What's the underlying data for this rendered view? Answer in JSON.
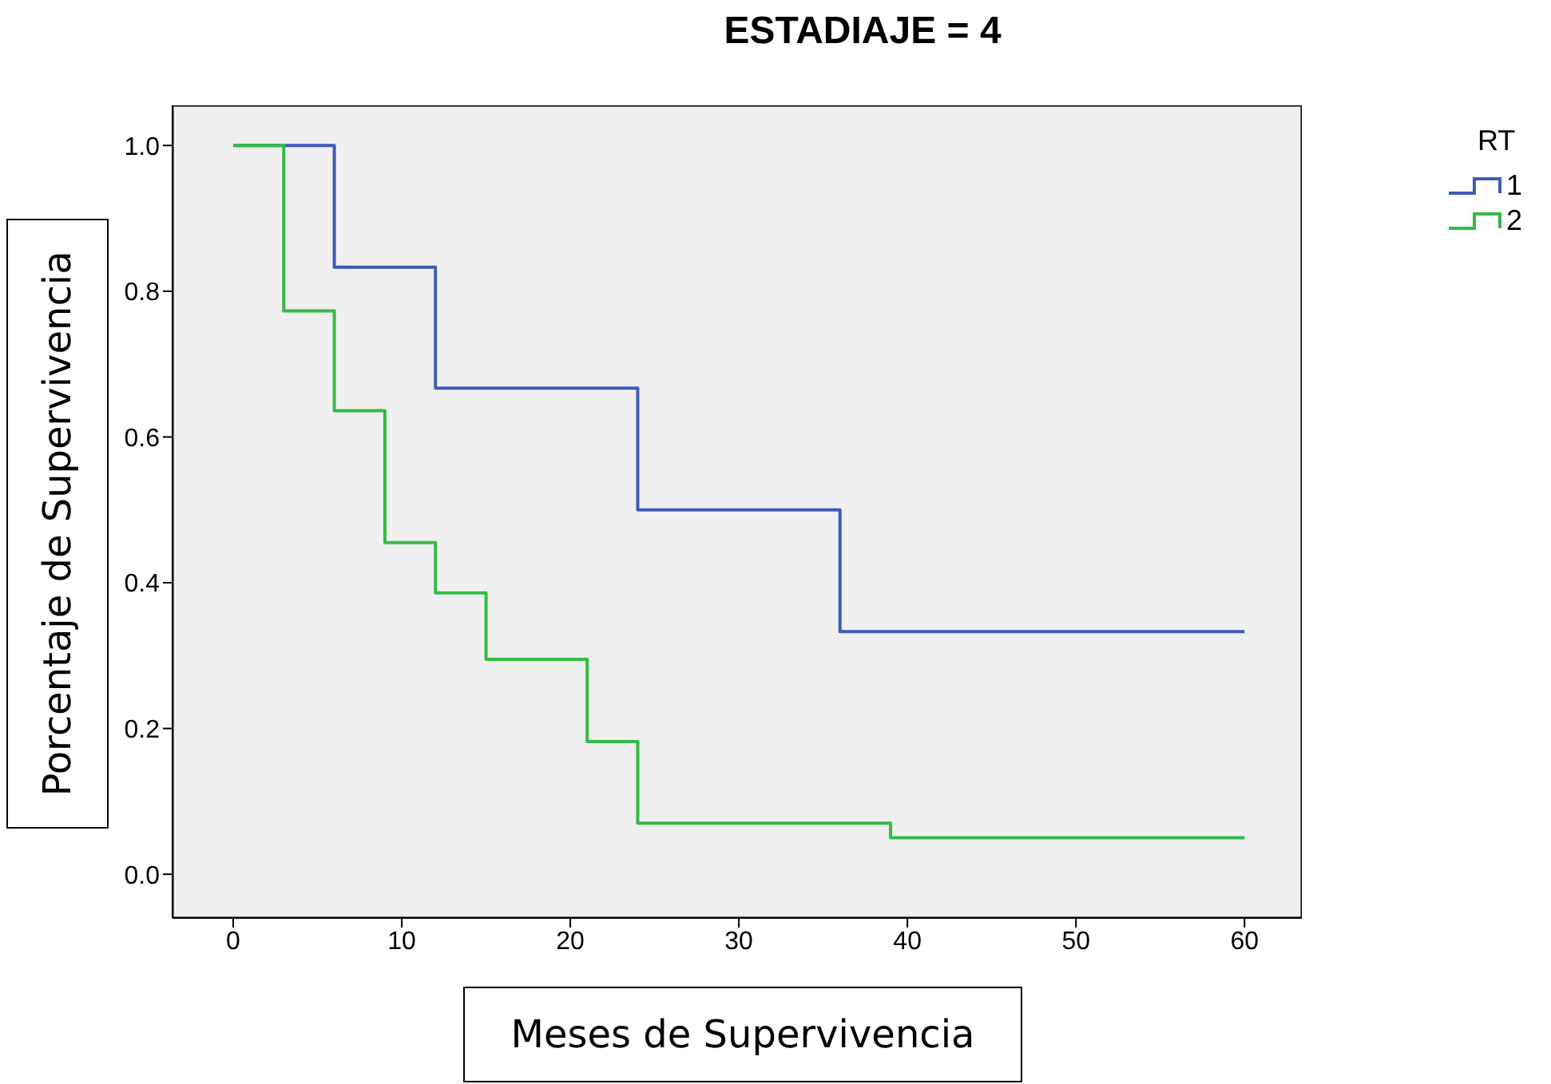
{
  "chart_data": {
    "type": "step",
    "title": "ESTADIAJE = 4",
    "xlabel": "Meses de Supervivencia",
    "ylabel": "Porcentaje de Supervivencia",
    "legend_title": "RT",
    "series": [
      {
        "name": "1",
        "color": "#3f5bb5",
        "x": [
          0,
          6,
          12,
          24,
          36,
          60
        ],
        "values": [
          1.0,
          0.833,
          0.667,
          0.5,
          0.333,
          0.333
        ]
      },
      {
        "name": "2",
        "color": "#33bb45",
        "x": [
          0,
          3,
          6,
          9,
          12,
          15,
          21,
          24,
          39,
          60
        ],
        "values": [
          1.0,
          0.773,
          0.636,
          0.455,
          0.386,
          0.295,
          0.182,
          0.07,
          0.05,
          0.05
        ]
      }
    ],
    "xlim": [
      -3.6,
      63.4
    ],
    "xticks": [
      0,
      10,
      20,
      30,
      40,
      50,
      60
    ],
    "ylim": [
      -0.06,
      1.055
    ],
    "yticks": [
      {
        "value": 0,
        "label": "0.0"
      },
      0.2,
      0.4,
      0.6,
      0.8,
      {
        "value": 1,
        "label": "1.0"
      }
    ],
    "legend": "top right",
    "marker": "none",
    "line_style": "solid"
  }
}
